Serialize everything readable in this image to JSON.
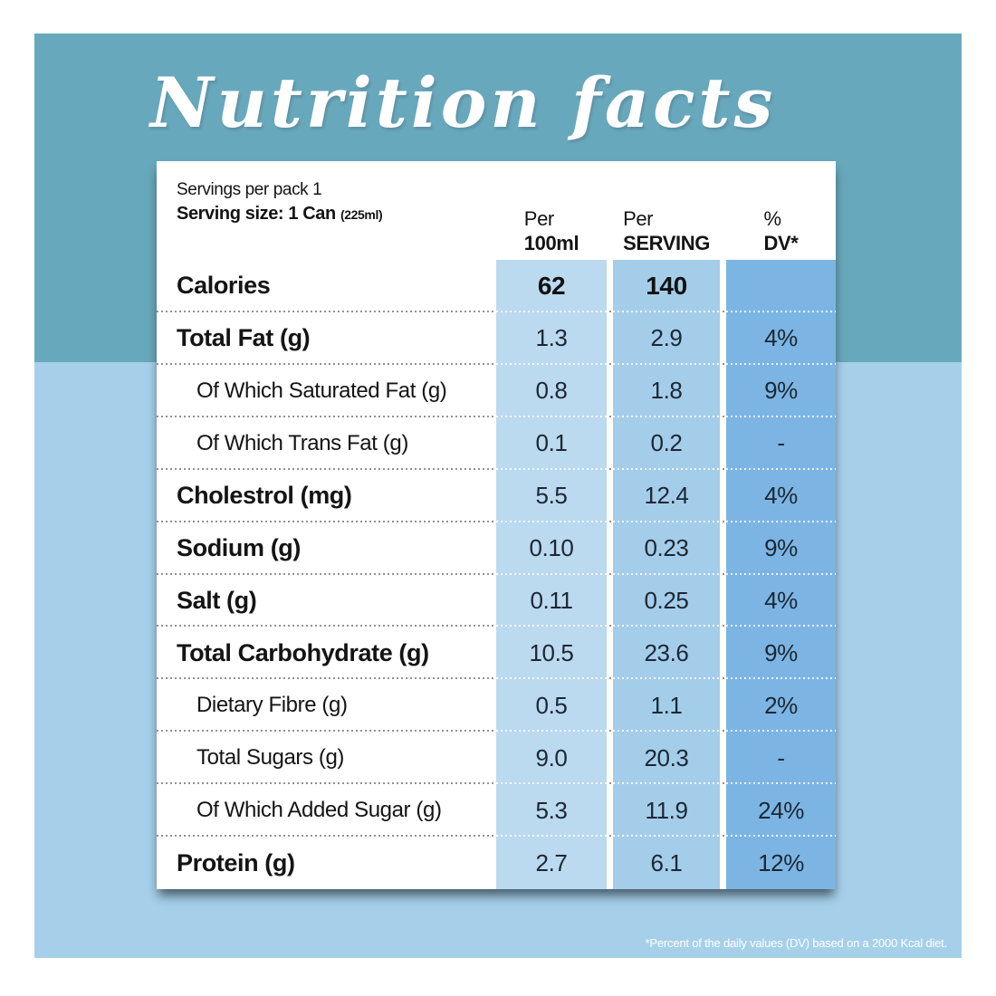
{
  "title": "Nutrition facts",
  "serving": {
    "per_pack": "Servings per pack 1",
    "size_label": "Serving size: 1 Can",
    "size_detail": "(225ml)"
  },
  "columns": [
    {
      "line1": "Per",
      "line2": "100ml"
    },
    {
      "line1": "Per",
      "line2": "SERVING"
    },
    {
      "line1": "%",
      "line2": "DV*"
    }
  ],
  "rows": [
    {
      "label": "Calories",
      "style": "bold",
      "emph_values": true,
      "per_100ml": "62",
      "per_serving": "140",
      "dv": ""
    },
    {
      "label": "Total Fat (g)",
      "style": "bold",
      "emph_values": false,
      "per_100ml": "1.3",
      "per_serving": "2.9",
      "dv": "4%"
    },
    {
      "label": "Of Which Saturated Fat (g)",
      "style": "indent",
      "emph_values": false,
      "per_100ml": "0.8",
      "per_serving": "1.8",
      "dv": "9%"
    },
    {
      "label": "Of Which Trans Fat (g)",
      "style": "indent",
      "emph_values": false,
      "per_100ml": "0.1",
      "per_serving": "0.2",
      "dv": "-"
    },
    {
      "label": "Cholestrol (mg)",
      "style": "bold",
      "emph_values": false,
      "per_100ml": "5.5",
      "per_serving": "12.4",
      "dv": "4%"
    },
    {
      "label": "Sodium (g)",
      "style": "bold",
      "emph_values": false,
      "per_100ml": "0.10",
      "per_serving": "0.23",
      "dv": "9%"
    },
    {
      "label": "Salt (g)",
      "style": "bold",
      "emph_values": false,
      "per_100ml": "0.11",
      "per_serving": "0.25",
      "dv": "4%"
    },
    {
      "label": "Total Carbohydrate (g)",
      "style": "bold",
      "emph_values": false,
      "per_100ml": "10.5",
      "per_serving": "23.6",
      "dv": "9%"
    },
    {
      "label": "Dietary Fibre (g)",
      "style": "indent",
      "emph_values": false,
      "per_100ml": "0.5",
      "per_serving": "1.1",
      "dv": "2%"
    },
    {
      "label": "Total Sugars (g)",
      "style": "indent",
      "emph_values": false,
      "per_100ml": "9.0",
      "per_serving": "20.3",
      "dv": "-"
    },
    {
      "label": "Of Which Added Sugar (g)",
      "style": "indent",
      "emph_values": false,
      "per_100ml": "5.3",
      "per_serving": "11.9",
      "dv": "24%"
    },
    {
      "label": "Protein (g)",
      "style": "bold",
      "emph_values": false,
      "per_100ml": "2.7",
      "per_serving": "6.1",
      "dv": "12%"
    }
  ],
  "footnote": "*Percent of the daily values (DV) based on a 2000 Kcal diet.",
  "colors": {
    "panel_top": "#68a8bc",
    "panel_bottom": "#a6d0ea",
    "card_background": "#ffffff",
    "column_per_100ml": "#bbd9ef",
    "column_per_serving": "#a4cdea",
    "column_dv": "#7cb5e3",
    "text": "#141414",
    "headline_text": "#ffffff",
    "footnote_text": "#ffffff"
  }
}
